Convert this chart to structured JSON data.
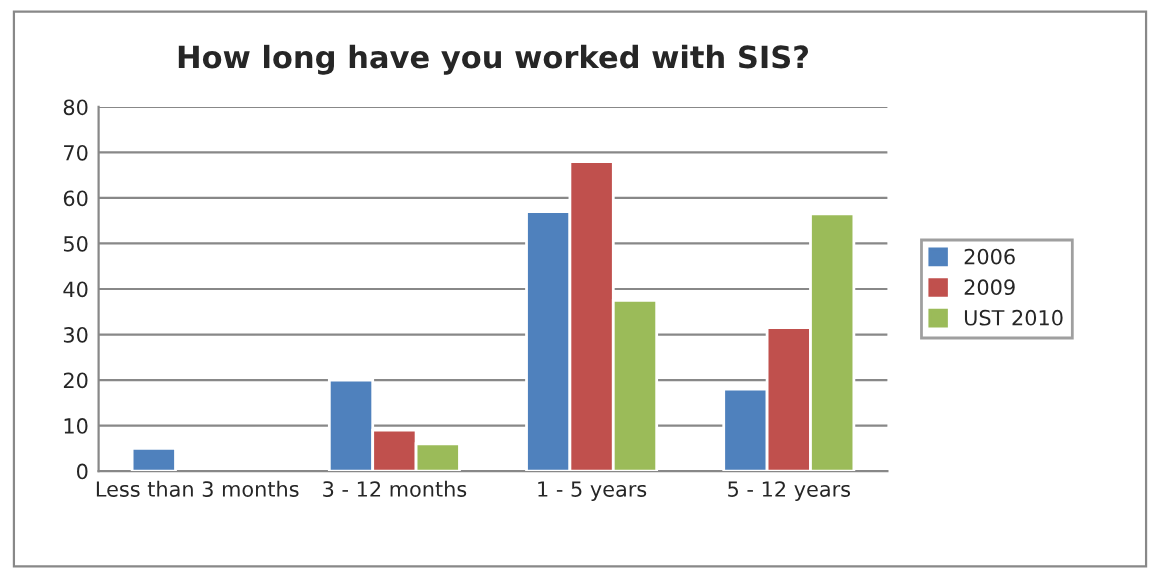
{
  "chart_data": {
    "type": "bar",
    "title": "How long have you worked with SIS?",
    "categories": [
      "Less than 3 months",
      "3 - 12 months",
      "1 - 5 years",
      "5 - 12 years"
    ],
    "series": [
      {
        "name": "2006",
        "color": "#4f81bd",
        "values": [
          5,
          20,
          57,
          18
        ]
      },
      {
        "name": "2009",
        "color": "#c0504d",
        "values": [
          null,
          9,
          68,
          31.5
        ]
      },
      {
        "name": "UST 2010",
        "color": "#9bbb59",
        "values": [
          null,
          6,
          37.5,
          56.5
        ]
      }
    ],
    "ylim": [
      0,
      80
    ],
    "yticks": [
      0,
      10,
      20,
      30,
      40,
      50,
      60,
      70,
      80
    ],
    "grid": "y",
    "legend": "right"
  }
}
